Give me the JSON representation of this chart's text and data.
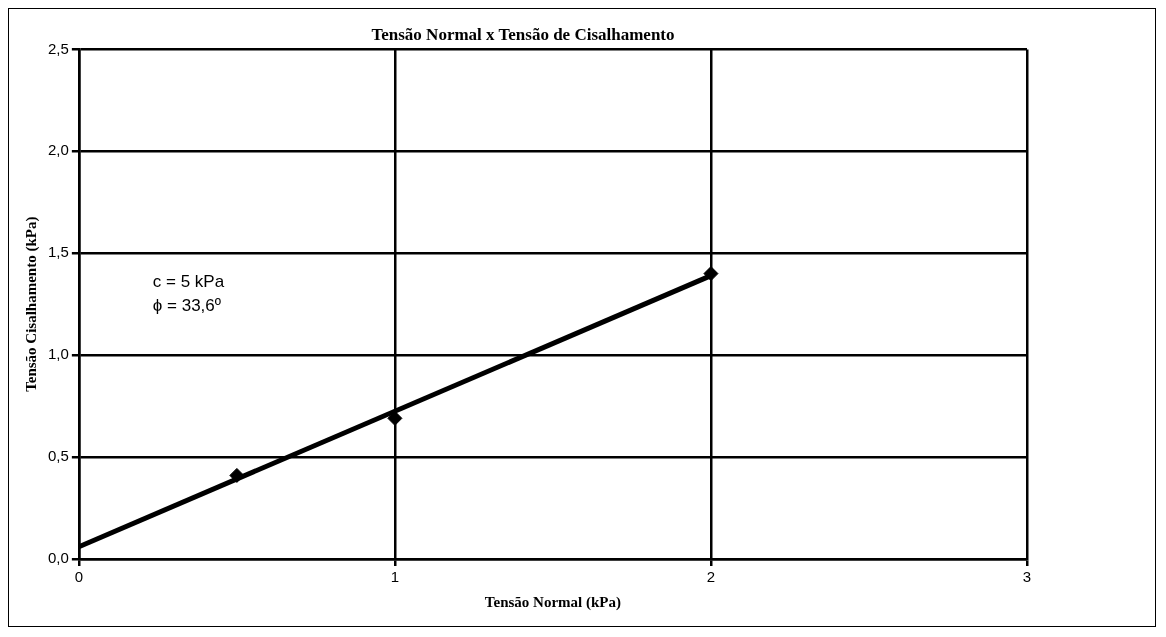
{
  "chart_data": {
    "type": "scatter",
    "title": "Tensão Normal x Tensão de Cisalhamento",
    "xlabel": "Tensão Normal (kPa)",
    "ylabel": "Tensão Cisalhamento (kPa)",
    "x": [
      0.5,
      1,
      2
    ],
    "series": [
      {
        "color": "#000000",
        "marker": "diamond",
        "values": [
          0.41,
          0.69,
          1.4
        ]
      },
      {
        "type": "line",
        "color": "#000000",
        "marker": "none",
        "x": [
          0,
          2
        ],
        "values": [
          0.06,
          1.39
        ]
      }
    ],
    "xlim": [
      0,
      3
    ],
    "xticks": [
      0,
      1,
      2,
      3
    ],
    "ylim": [
      0,
      2.5
    ],
    "yticks": [
      {
        "value": 0,
        "label": "0,0"
      },
      {
        "value": 0.5,
        "label": "0,5"
      },
      {
        "value": 1,
        "label": "1,0"
      },
      {
        "value": 1.5,
        "label": "1,5"
      },
      {
        "value": 2,
        "label": "2,0"
      },
      {
        "value": 2.5,
        "label": "2,5"
      }
    ],
    "grid": true,
    "legend": false,
    "line_style": "solid",
    "annotations": [
      "c = 5 kPa",
      "ϕ = 33,6º"
    ]
  }
}
